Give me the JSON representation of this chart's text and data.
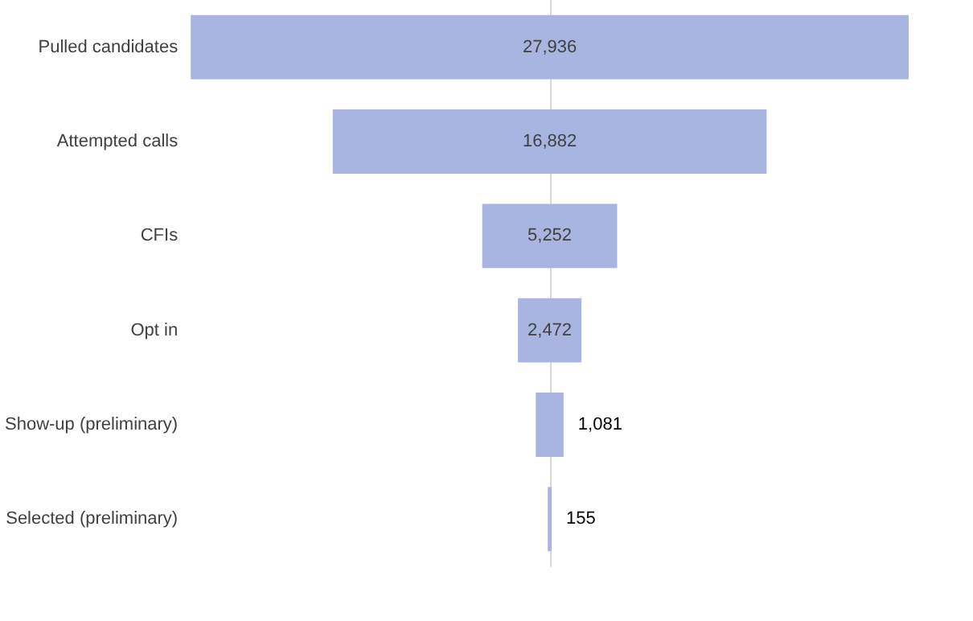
{
  "chart_data": {
    "type": "other",
    "categories": [
      "Pulled candidates",
      "Attempted calls",
      "CFIs",
      "Opt in",
      "Show-up (preliminary)",
      "Selected (preliminary)"
    ],
    "values": [
      27936,
      16882,
      5252,
      2472,
      1081,
      155
    ],
    "color": "#a8b5e1",
    "value_labels": [
      "27,936",
      "16,882",
      "5,252",
      "2,472",
      "1,081",
      "155"
    ]
  }
}
